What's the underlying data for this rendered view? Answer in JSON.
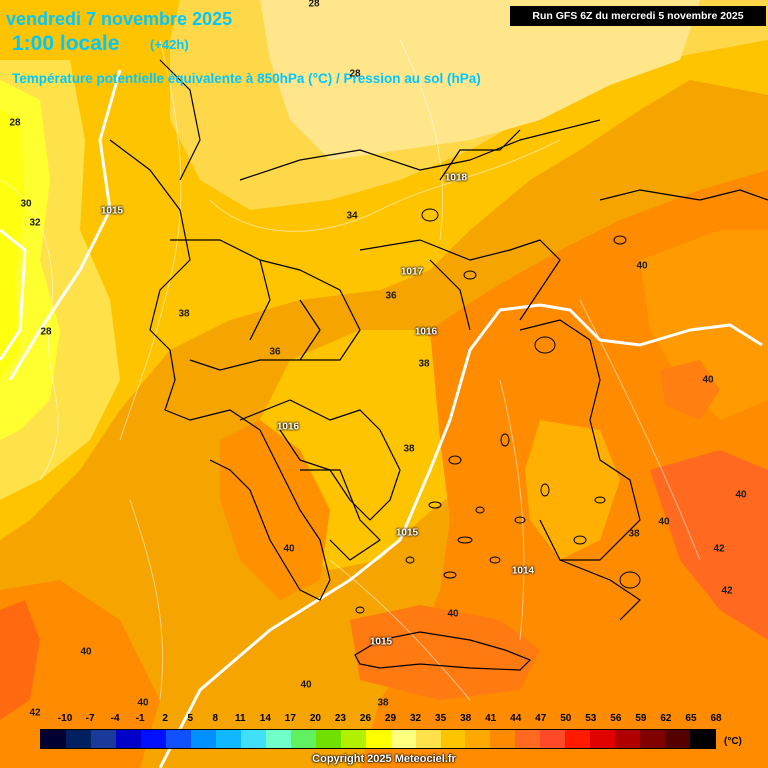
{
  "header": {
    "date": "vendredi 7 novembre 2025",
    "time": "1:00 locale",
    "lead": "(+42h)",
    "field_title": "Température potentielle équivalente à 850hPa (°C) / Pression au sol (hPa)",
    "run": "Run GFS 6Z du mercredi 5 novembre 2025"
  },
  "map_labels": {
    "temperature": [
      "28",
      "28",
      "30",
      "32",
      "28",
      "34",
      "36",
      "38",
      "36",
      "38",
      "38",
      "40",
      "40",
      "40",
      "40",
      "40",
      "40",
      "42",
      "42",
      "42",
      "40",
      "40",
      "38",
      "38",
      "40",
      "28"
    ],
    "pressure": [
      "1018",
      "1015",
      "1017",
      "1016",
      "1016",
      "1015",
      "1014",
      "1015"
    ]
  },
  "legend": {
    "ticks": [
      "-10",
      "-7",
      "-4",
      "-1",
      "2",
      "5",
      "8",
      "11",
      "14",
      "17",
      "20",
      "23",
      "26",
      "29",
      "32",
      "35",
      "38",
      "41",
      "44",
      "47",
      "50",
      "53",
      "56",
      "59",
      "62",
      "65",
      "68"
    ],
    "colors": [
      "#000033",
      "#002060",
      "#1a3a9a",
      "#0000c8",
      "#0010ff",
      "#1050ff",
      "#0090ff",
      "#10b8ff",
      "#40e0f8",
      "#70ffc8",
      "#60f060",
      "#70e000",
      "#b0f000",
      "#ffff00",
      "#ffff80",
      "#ffe24a",
      "#ffc400",
      "#ffa800",
      "#ff8a00",
      "#ff6a20",
      "#ff4a2a",
      "#ff1a00",
      "#e00000",
      "#b00000",
      "#800000",
      "#550000",
      "#000000"
    ],
    "unit": "(°C)"
  },
  "copyright": "Copyright 2025 Meteociel.fr"
}
